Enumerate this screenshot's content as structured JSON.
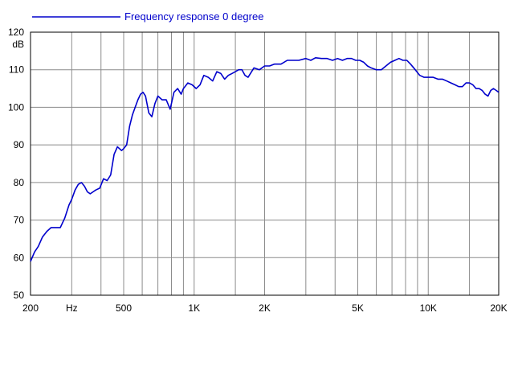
{
  "chart_data": {
    "type": "line",
    "x_scale": "log",
    "xlim": [
      200,
      20000
    ],
    "ylim": [
      50,
      120
    ],
    "ylabel": "dB",
    "grid": true,
    "legend_position": "top-left",
    "x_ticks": [
      {
        "value": 200,
        "label": "200"
      },
      {
        "value": 300,
        "label": "Hz"
      },
      {
        "value": 500,
        "label": "500"
      },
      {
        "value": 1000,
        "label": "1K"
      },
      {
        "value": 2000,
        "label": "2K"
      },
      {
        "value": 5000,
        "label": "5K"
      },
      {
        "value": 10000,
        "label": "10K"
      },
      {
        "value": 20000,
        "label": "20K"
      }
    ],
    "x_gridlines": [
      300,
      400,
      500,
      600,
      700,
      800,
      900,
      1000,
      1500,
      2000,
      3000,
      4000,
      5000,
      6000,
      7000,
      8000,
      9000,
      10000,
      15000,
      20000
    ],
    "y_ticks": [
      50,
      60,
      70,
      80,
      90,
      100,
      110,
      120
    ],
    "series": [
      {
        "name": "Frequency response 0 degree",
        "color": "#0000cc",
        "x": [
          200,
          208,
          216,
          225,
          235,
          245,
          256,
          268,
          280,
          292,
          300,
          310,
          320,
          330,
          340,
          350,
          360,
          370,
          380,
          395,
          410,
          425,
          440,
          455,
          470,
          480,
          490,
          500,
          515,
          530,
          545,
          560,
          575,
          590,
          605,
          620,
          640,
          660,
          680,
          700,
          730,
          760,
          790,
          820,
          850,
          880,
          900,
          940,
          980,
          1020,
          1060,
          1100,
          1150,
          1200,
          1250,
          1300,
          1350,
          1400,
          1450,
          1500,
          1550,
          1600,
          1650,
          1700,
          1800,
          1900,
          2000,
          2100,
          2200,
          2350,
          2500,
          2650,
          2800,
          3000,
          3150,
          3300,
          3500,
          3700,
          3900,
          4100,
          4300,
          4500,
          4700,
          4900,
          5100,
          5300,
          5500,
          5700,
          6000,
          6300,
          6600,
          6900,
          7200,
          7500,
          7800,
          8100,
          8400,
          8800,
          9200,
          9600,
          10000,
          10500,
          11000,
          11500,
          12000,
          12500,
          13000,
          13500,
          14000,
          14500,
          15000,
          15500,
          16000,
          16500,
          17000,
          17500,
          18000,
          18500,
          19000,
          19500,
          20000
        ],
        "y": [
          59,
          61.5,
          63,
          65.5,
          67,
          68,
          68,
          68,
          70.5,
          74,
          75.5,
          78,
          79.5,
          80,
          79,
          77.5,
          77,
          77.5,
          78,
          78.5,
          81,
          80.5,
          82,
          87.5,
          89.5,
          89,
          88.5,
          89,
          90,
          95,
          98,
          100,
          102,
          103.5,
          104,
          103,
          98.5,
          97.5,
          101,
          103,
          102,
          102,
          99.5,
          104,
          105,
          103.5,
          105,
          106.5,
          106,
          105,
          106,
          108.5,
          108,
          107,
          109.5,
          109,
          107.5,
          108.5,
          109,
          109.5,
          110,
          110,
          108.5,
          108,
          110.5,
          110,
          111,
          111,
          111.5,
          111.5,
          112.5,
          112.5,
          112.5,
          113,
          112.5,
          113.2,
          113,
          113,
          112.5,
          113,
          112.5,
          113,
          113,
          112.5,
          112.5,
          112,
          111,
          110.5,
          110,
          110,
          111,
          112,
          112.5,
          113,
          112.5,
          112.5,
          111.5,
          110,
          108.5,
          108,
          108,
          108,
          107.5,
          107.5,
          107,
          106.5,
          106,
          105.5,
          105.5,
          106.5,
          106.5,
          106,
          105,
          105,
          104.5,
          103.5,
          103,
          104.5,
          105,
          104.5,
          104
        ]
      }
    ]
  }
}
